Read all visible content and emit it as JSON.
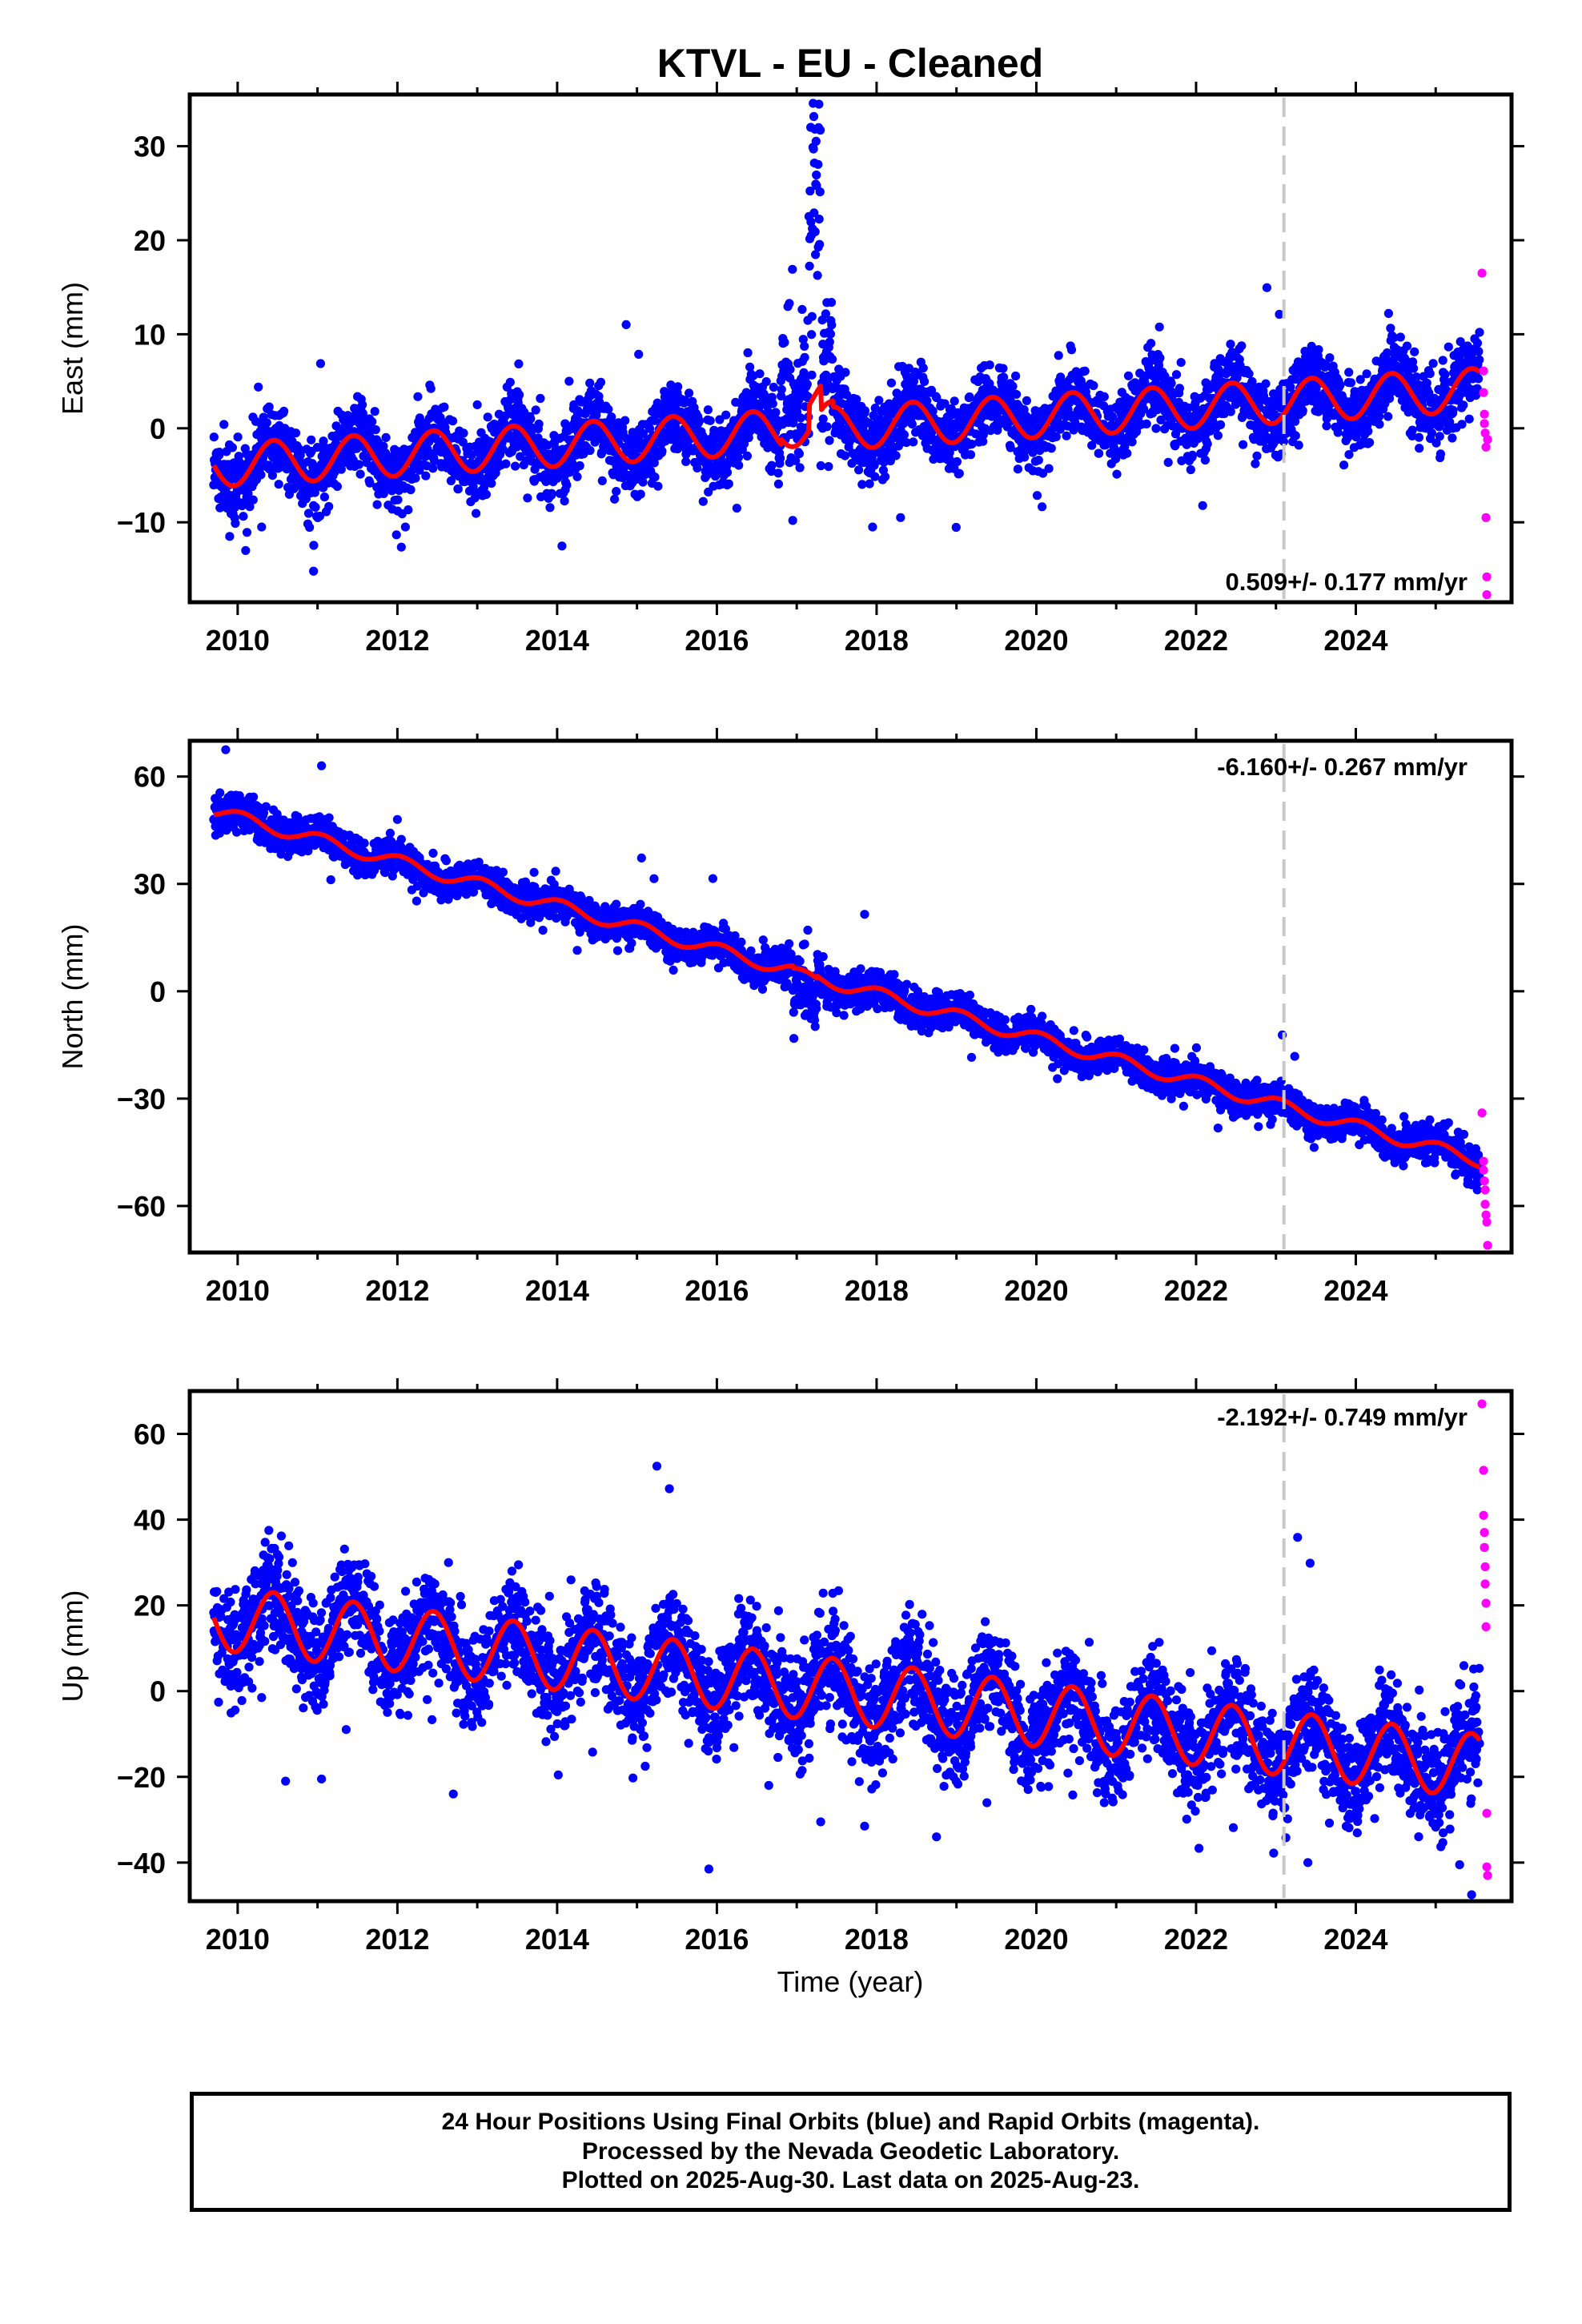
{
  "title": "KTVL  - EU - Cleaned",
  "xlabel": "Time (year)",
  "caption": {
    "line1": "24 Hour Positions Using Final Orbits (blue) and Rapid Orbits (magenta).",
    "line2": "Processed by the Nevada Geodetic Laboratory.",
    "line3": "Plotted on 2025-Aug-30. Last data on 2025-Aug-23."
  },
  "colors": {
    "final_orbits": "#0000ff",
    "rapid_orbits": "#ff00ff",
    "model_fit": "#ff0000",
    "event_line": "#c8c8c8",
    "frame": "#000000"
  },
  "chart_data": [
    {
      "type": "scatter",
      "component": "east",
      "ylabel": "East (mm)",
      "rate_text": "0.509+/- 0.177 mm/yr",
      "rate_position": "bottom-right",
      "xlim": [
        2009.4,
        2025.95
      ],
      "ylim": [
        -18.5,
        35.5
      ],
      "x_ticks": [
        2010,
        2012,
        2014,
        2016,
        2018,
        2020,
        2022,
        2024
      ],
      "y_ticks": [
        -10,
        0,
        10,
        20,
        30
      ],
      "y_tick_labels": [
        "−10",
        "0",
        "10",
        "20",
        "30"
      ],
      "data_start": 2009.7,
      "data_end": 2025.55,
      "event_line_x": 2023.1,
      "trend_rate_mm_per_yr": 0.509,
      "trend_value_at_2010": -3.8,
      "annual_amplitude": 2.3,
      "annual_peak_phase_year": 0.45,
      "scatter_spread": 1.9,
      "fit_segments": [
        {
          "t0": 2009.7,
          "t1": 2016.8,
          "offset": 0
        },
        {
          "t0": 2016.8,
          "t1": 2017.6,
          "offset": 0
        },
        {
          "t0": 2017.6,
          "t1": 2025.55,
          "offset": 0
        }
      ],
      "disturbances": [
        {
          "t0": 2016.8,
          "t1": 2017.45,
          "shift": 5.0,
          "extra_spread": 4.0
        },
        {
          "t0": 2017.15,
          "t1": 2017.3,
          "shift": 22.0,
          "extra_spread": 6.0
        }
      ],
      "rapid_points": {
        "x": [
          2025.58,
          2025.6,
          2025.6,
          2025.61,
          2025.61,
          2025.62,
          2025.63,
          2025.63,
          2025.64,
          2025.64,
          2025.65
        ],
        "y": [
          16.5,
          6.1,
          3.8,
          1.5,
          0.5,
          -0.5,
          -2.0,
          -9.5,
          -15.8,
          -17.7,
          -1.2
        ]
      },
      "outliers": {
        "x": [
          2009.9,
          2010.1,
          2010.3,
          2010.95,
          2012.1,
          2016.25,
          2016.95,
          2017.95,
          2018.3,
          2014.15,
          2013.0
        ],
        "y": [
          -11.5,
          -13.0,
          -10.5,
          -15.2,
          -10.5,
          -8.5,
          -9.8,
          -10.5,
          -9.5,
          5.0,
          2.5
        ]
      }
    },
    {
      "type": "scatter",
      "component": "north",
      "ylabel": "North (mm)",
      "rate_text": "-6.160+/- 0.267 mm/yr",
      "rate_position": "top-right",
      "xlim": [
        2009.4,
        2025.95
      ],
      "ylim": [
        -73,
        70
      ],
      "x_ticks": [
        2010,
        2012,
        2014,
        2016,
        2018,
        2020,
        2022,
        2024
      ],
      "y_ticks": [
        -60,
        -30,
        0,
        30,
        60
      ],
      "y_tick_labels": [
        "−60",
        "−30",
        "0",
        "30",
        "60"
      ],
      "data_start": 2009.7,
      "data_end": 2025.55,
      "event_line_x": 2023.1,
      "trend_rate_mm_per_yr": -6.16,
      "trend_value_at_2010": 48.5,
      "annual_amplitude": 1.8,
      "annual_peak_phase_year": 0.05,
      "scatter_spread": 2.4,
      "fit_segments": [
        {
          "t0": 2009.7,
          "t1": 2025.55,
          "offset": 0
        }
      ],
      "disturbances": [
        {
          "t0": 2016.95,
          "t1": 2017.25,
          "shift": -6.0,
          "extra_spread": 4.5
        }
      ],
      "rapid_points": {
        "x": [
          2025.58,
          2025.6,
          2025.6,
          2025.61,
          2025.62,
          2025.62,
          2025.63,
          2025.64,
          2025.65
        ],
        "y": [
          -34.0,
          -47.5,
          -50.0,
          -53.0,
          -55.5,
          -59.5,
          -62.5,
          -64.5,
          -71.0
        ]
      },
      "outliers": {
        "x": [
          2009.85,
          2011.05,
          2012.0,
          2015.95,
          2017.85,
          2014.9
        ],
        "y": [
          67.5,
          63.0,
          48.0,
          31.5,
          21.5,
          12.0
        ]
      }
    },
    {
      "type": "scatter",
      "component": "up",
      "ylabel": "Up (mm)",
      "rate_text": "-2.192+/- 0.749 mm/yr",
      "rate_position": "top-right",
      "xlim": [
        2009.4,
        2025.95
      ],
      "ylim": [
        -49,
        70
      ],
      "x_ticks": [
        2010,
        2012,
        2014,
        2016,
        2018,
        2020,
        2022,
        2024
      ],
      "y_ticks": [
        -40,
        -20,
        0,
        20,
        40,
        60
      ],
      "y_tick_labels": [
        "−40",
        "−20",
        "0",
        "20",
        "40",
        "60"
      ],
      "data_start": 2009.7,
      "data_end": 2025.55,
      "event_line_x": 2023.1,
      "trend_rate_mm_per_yr": -2.192,
      "trend_value_at_2010": 16.5,
      "annual_amplitude": 7.5,
      "annual_peak_phase_year": 0.45,
      "scatter_spread": 6.0,
      "fit_segments": [
        {
          "t0": 2009.7,
          "t1": 2025.55,
          "offset": 0
        }
      ],
      "disturbances": [],
      "rapid_points": {
        "x": [
          2025.58,
          2025.6,
          2025.6,
          2025.61,
          2025.61,
          2025.62,
          2025.62,
          2025.63,
          2025.63,
          2025.64,
          2025.64,
          2025.65
        ],
        "y": [
          67.0,
          51.5,
          41.0,
          37.0,
          33.5,
          29.0,
          25.0,
          20.5,
          15.0,
          -28.5,
          -41.0,
          -43.0
        ]
      },
      "outliers": {
        "x": [
          2010.6,
          2011.05,
          2012.7,
          2015.9,
          2016.65,
          2017.3,
          2017.85,
          2018.75,
          2023.4,
          2025.3,
          2025.45,
          2010.3
        ],
        "y": [
          -21.0,
          -20.5,
          -24.0,
          -41.5,
          -22.0,
          -30.5,
          -31.5,
          -34.0,
          -40.0,
          -40.5,
          -47.5,
          -1.5
        ]
      }
    }
  ]
}
